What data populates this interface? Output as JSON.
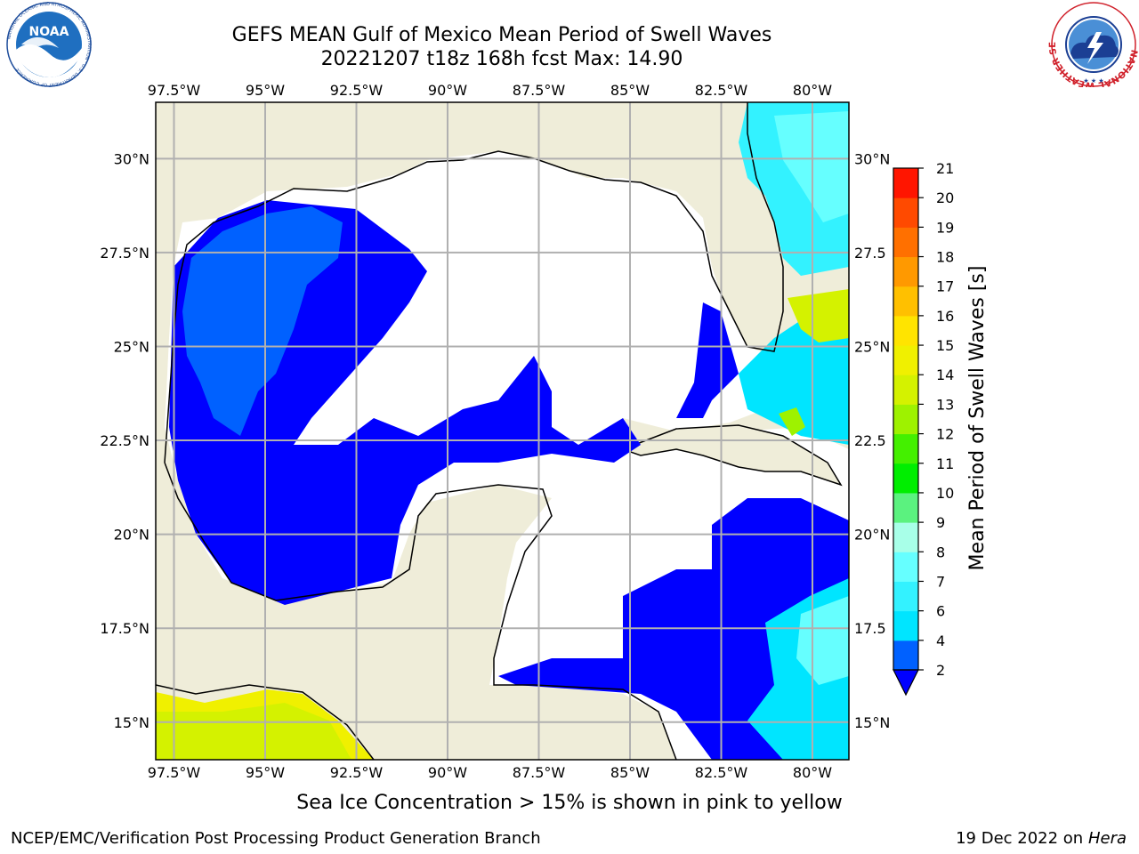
{
  "title": {
    "line1": "GEFS MEAN Gulf of Mexico Mean Period of Swell Waves",
    "line2": "20221207 t18z 168h fcst   Max: 14.90"
  },
  "map": {
    "lon_ticks": [
      "97.5°W",
      "95°W",
      "92.5°W",
      "90°W",
      "87.5°W",
      "85°W",
      "82.5°W",
      "80°W"
    ],
    "lat_ticks_left": [
      "30°N",
      "27.5°N",
      "25°N",
      "22.5°N",
      "20°N",
      "17.5°N",
      "15°N"
    ],
    "lat_ticks_right": [
      "30°N",
      "27.5",
      "25°N",
      "22.5",
      "20°N",
      "17.5",
      "15°N"
    ],
    "lon_range": [
      -98,
      -79
    ],
    "lat_range": [
      14,
      31.5
    ],
    "colors": {
      "land": "#efedd9",
      "water_below_min": "#ffffff",
      "grid": "#b0b0b0"
    }
  },
  "colorbar": {
    "label": "Mean Period of Swell Waves [s]",
    "ticks": [
      "2",
      "4",
      "6",
      "7",
      "8",
      "9",
      "10",
      "11",
      "12",
      "13",
      "14",
      "15",
      "16",
      "17",
      "18",
      "19",
      "20",
      "21"
    ],
    "colors": [
      "#0061ff",
      "#00e5ff",
      "#33f2ff",
      "#66ffff",
      "#a8ffe8",
      "#5bf27f",
      "#00ee00",
      "#44f000",
      "#9ef200",
      "#d4f200",
      "#f0f000",
      "#ffe400",
      "#ffc000",
      "#ff9900",
      "#ff7000",
      "#ff4a00",
      "#ff1500"
    ],
    "under_color": "#0000ff"
  },
  "note": "Sea Ice Concentration > 15% is shown in pink to yellow",
  "footer": {
    "left": "NCEP/EMC/Verification Post Processing Product Generation Branch",
    "right_date": "19 Dec 2022 on",
    "right_host": "Hera"
  },
  "logos": {
    "noaa_text": "NOAA",
    "noaa_ring": "NATIONAL OCEANIC AND ATMOSPHERIC ADMINISTRATION · U.S. DEPARTMENT OF COMMERCE",
    "nws_ring": "NATIONAL WEATHER SERVICE"
  }
}
